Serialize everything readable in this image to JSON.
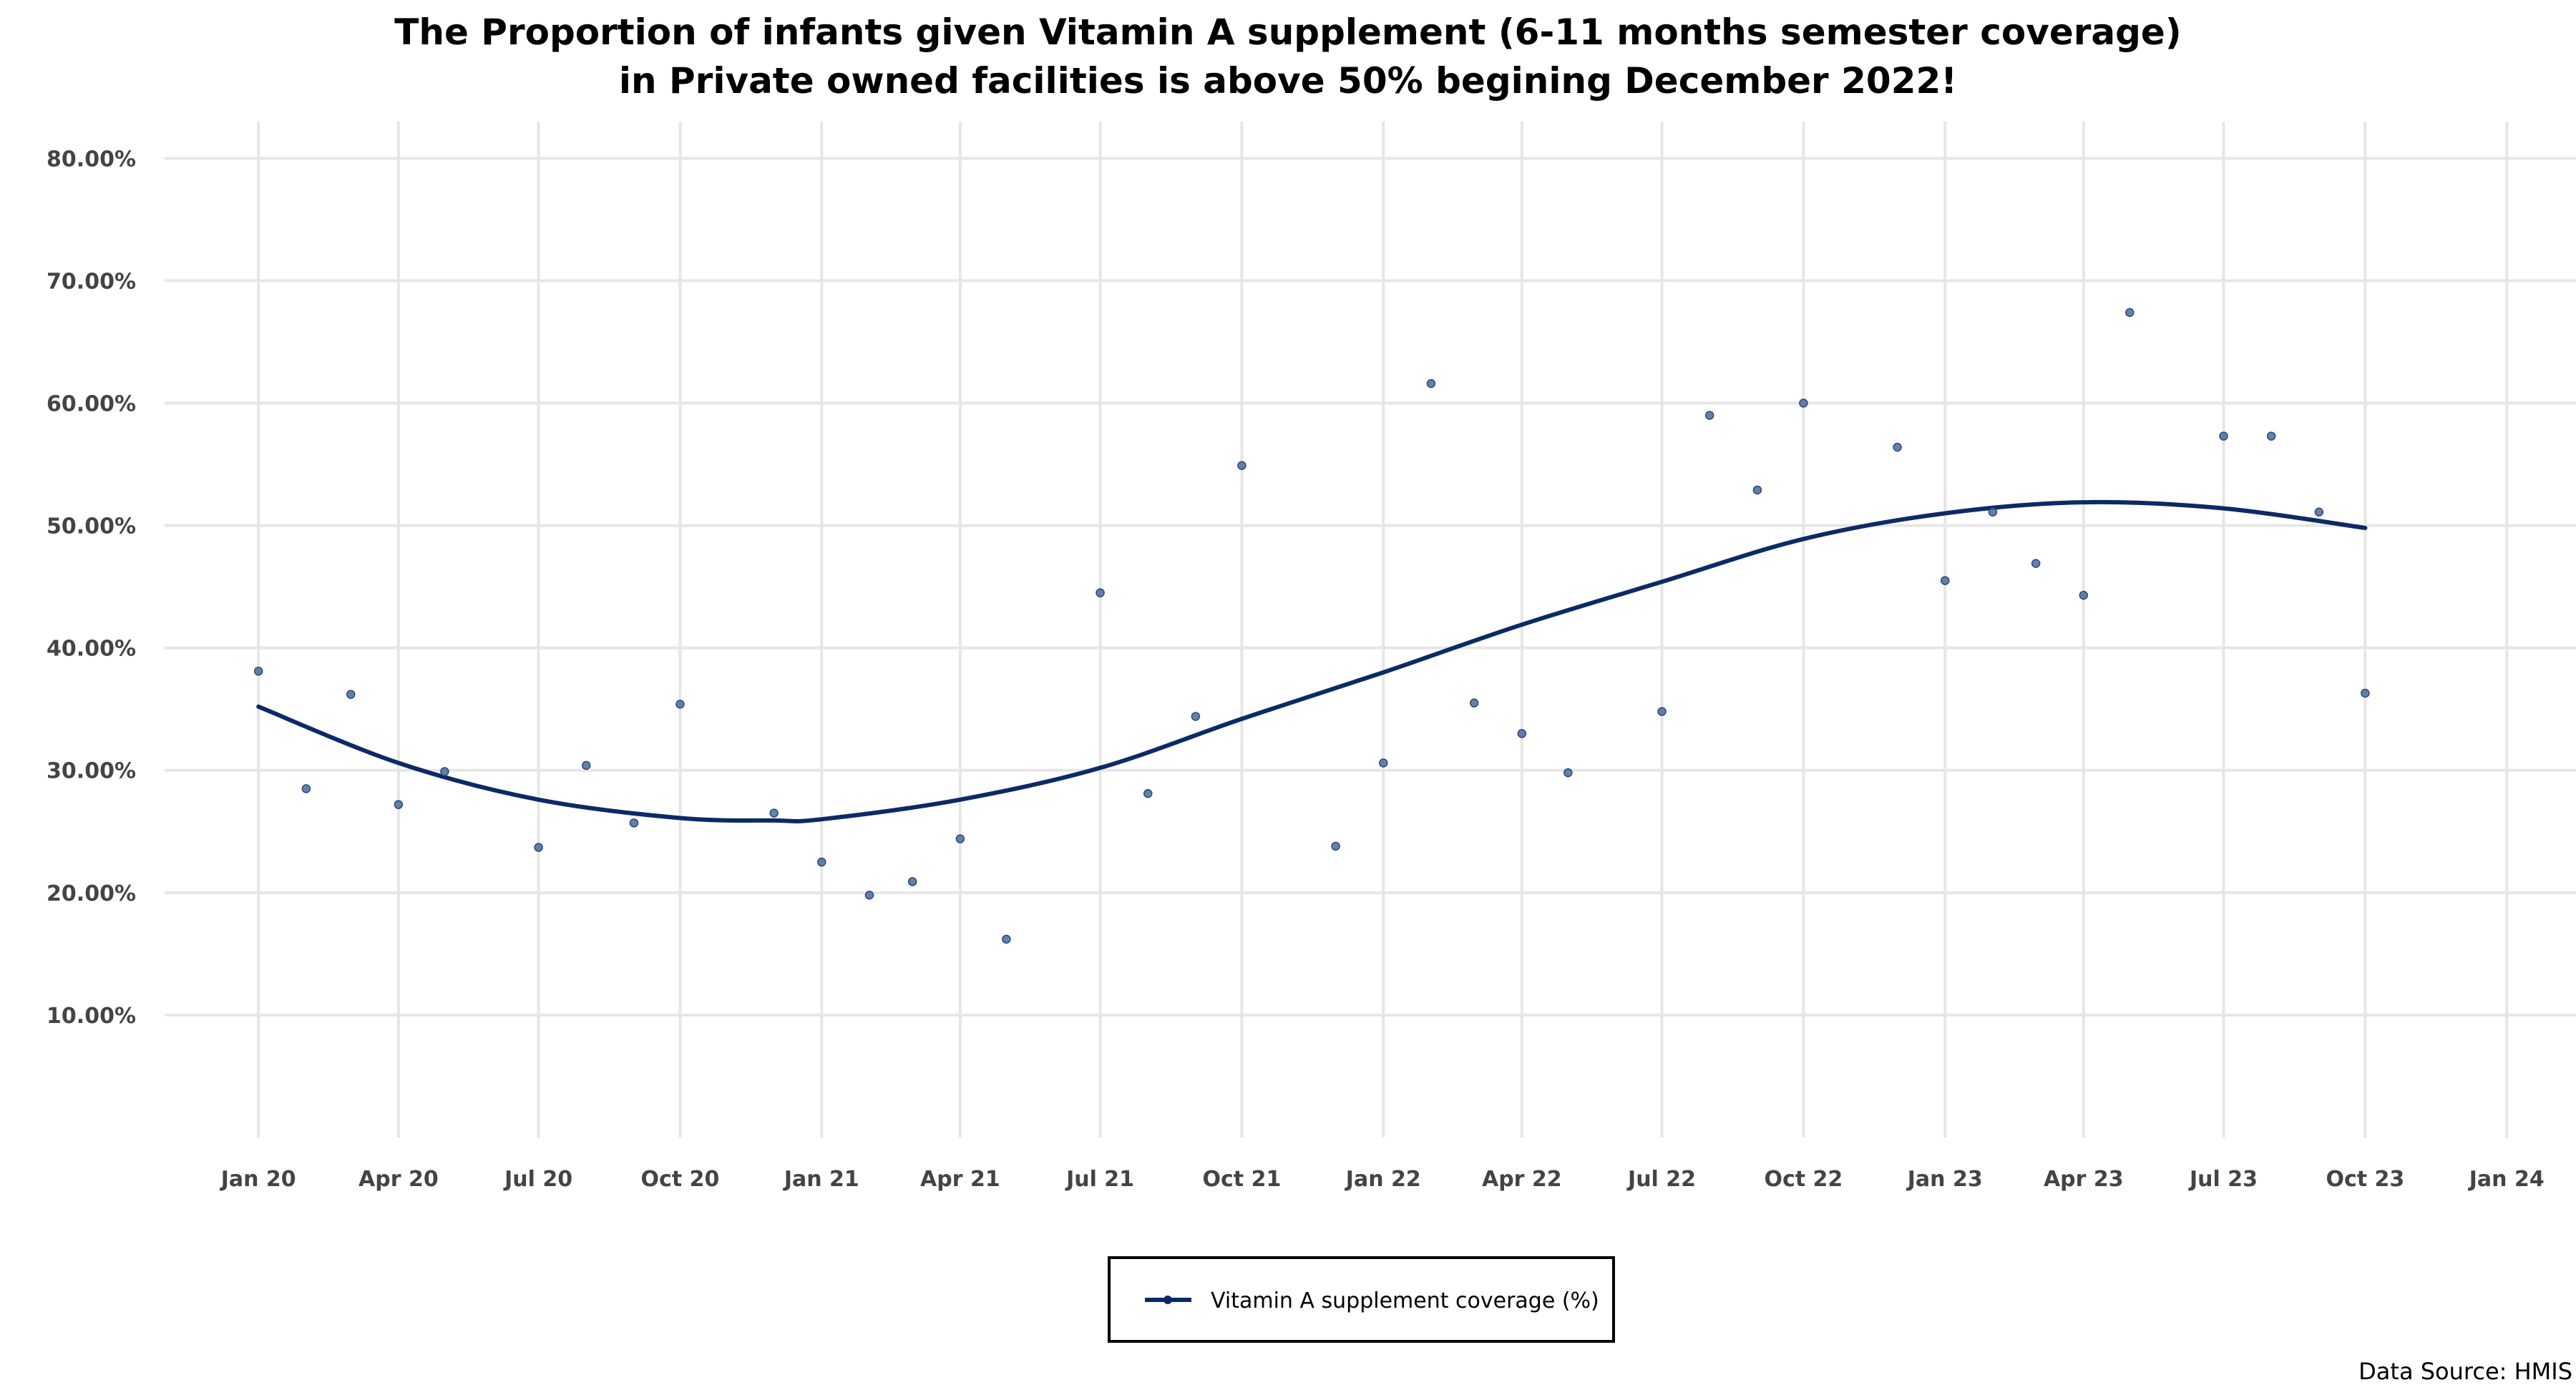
{
  "chart_data": {
    "type": "scatter",
    "title": "The Proportion of infants given Vitamin A supplement (6-11 months semester coverage)",
    "subtitle": "in Private owned facilities is above 50% begining December 2022!",
    "xlabel": "",
    "ylabel": "",
    "x_range": [
      "2019-11-01",
      "2024-02-15"
    ],
    "y_range": [
      0,
      83
    ],
    "grid": true,
    "legend_position": "bottom",
    "source": "Data Source: HMIS",
    "colors": {
      "line": "#0b2a66",
      "points": "#4a6a9a",
      "grid": "#e6e6e6"
    },
    "x_ticks": [
      {
        "date": "2020-01-01",
        "label": "Jan 20"
      },
      {
        "date": "2020-04-01",
        "label": "Apr 20"
      },
      {
        "date": "2020-07-01",
        "label": "Jul 20"
      },
      {
        "date": "2020-10-01",
        "label": "Oct 20"
      },
      {
        "date": "2021-01-01",
        "label": "Jan 21"
      },
      {
        "date": "2021-04-01",
        "label": "Apr 21"
      },
      {
        "date": "2021-07-01",
        "label": "Jul 21"
      },
      {
        "date": "2021-10-01",
        "label": "Oct 21"
      },
      {
        "date": "2022-01-01",
        "label": "Jan 22"
      },
      {
        "date": "2022-04-01",
        "label": "Apr 22"
      },
      {
        "date": "2022-07-01",
        "label": "Jul 22"
      },
      {
        "date": "2022-10-01",
        "label": "Oct 22"
      },
      {
        "date": "2023-01-01",
        "label": "Jan 23"
      },
      {
        "date": "2023-04-01",
        "label": "Apr 23"
      },
      {
        "date": "2023-07-01",
        "label": "Jul 23"
      },
      {
        "date": "2023-10-01",
        "label": "Oct 23"
      },
      {
        "date": "2024-01-01",
        "label": "Jan 24"
      }
    ],
    "y_ticks": [
      {
        "value": 10,
        "label": "10.00%"
      },
      {
        "value": 20,
        "label": "20.00%"
      },
      {
        "value": 30,
        "label": "30.00%"
      },
      {
        "value": 40,
        "label": "40.00%"
      },
      {
        "value": 50,
        "label": "50.00%"
      },
      {
        "value": 60,
        "label": "60.00%"
      },
      {
        "value": 70,
        "label": "70.00%"
      },
      {
        "value": 80,
        "label": "80.00%"
      }
    ],
    "series": [
      {
        "name": "Vitamin A supplement coverage (%)",
        "points": [
          {
            "x": "2020-01-01",
            "y": 38.1
          },
          {
            "x": "2020-02-01",
            "y": 28.5
          },
          {
            "x": "2020-03-01",
            "y": 36.2
          },
          {
            "x": "2020-04-01",
            "y": 27.2
          },
          {
            "x": "2020-05-01",
            "y": 29.9
          },
          {
            "x": "2020-07-01",
            "y": 23.7
          },
          {
            "x": "2020-08-01",
            "y": 30.4
          },
          {
            "x": "2020-09-01",
            "y": 25.7
          },
          {
            "x": "2020-10-01",
            "y": 35.4
          },
          {
            "x": "2020-12-01",
            "y": 26.5
          },
          {
            "x": "2021-01-01",
            "y": 22.5
          },
          {
            "x": "2021-02-01",
            "y": 19.8
          },
          {
            "x": "2021-03-01",
            "y": 20.9
          },
          {
            "x": "2021-04-01",
            "y": 24.4
          },
          {
            "x": "2021-05-01",
            "y": 16.2
          },
          {
            "x": "2021-07-01",
            "y": 44.5
          },
          {
            "x": "2021-08-01",
            "y": 28.1
          },
          {
            "x": "2021-09-01",
            "y": 34.4
          },
          {
            "x": "2021-10-01",
            "y": 54.9
          },
          {
            "x": "2021-12-01",
            "y": 23.8
          },
          {
            "x": "2022-01-01",
            "y": 30.6
          },
          {
            "x": "2022-02-01",
            "y": 61.6
          },
          {
            "x": "2022-03-01",
            "y": 35.5
          },
          {
            "x": "2022-04-01",
            "y": 33.0
          },
          {
            "x": "2022-05-01",
            "y": 29.8
          },
          {
            "x": "2022-07-01",
            "y": 34.8
          },
          {
            "x": "2022-08-01",
            "y": 59.0
          },
          {
            "x": "2022-09-01",
            "y": 52.9
          },
          {
            "x": "2022-10-01",
            "y": 60.0
          },
          {
            "x": "2022-12-01",
            "y": 56.4
          },
          {
            "x": "2023-01-01",
            "y": 45.5
          },
          {
            "x": "2023-02-01",
            "y": 51.1
          },
          {
            "x": "2023-03-01",
            "y": 46.9
          },
          {
            "x": "2023-04-01",
            "y": 44.3
          },
          {
            "x": "2023-05-01",
            "y": 67.4
          },
          {
            "x": "2023-07-01",
            "y": 57.3
          },
          {
            "x": "2023-08-01",
            "y": 57.3
          },
          {
            "x": "2023-09-01",
            "y": 51.1
          },
          {
            "x": "2023-10-01",
            "y": 36.3
          }
        ],
        "trend": [
          {
            "x": "2020-01-01",
            "y": 35.2
          },
          {
            "x": "2020-04-01",
            "y": 30.6
          },
          {
            "x": "2020-07-01",
            "y": 27.6
          },
          {
            "x": "2020-10-01",
            "y": 26.1
          },
          {
            "x": "2020-12-01",
            "y": 25.9
          },
          {
            "x": "2021-01-01",
            "y": 26.0
          },
          {
            "x": "2021-04-01",
            "y": 27.6
          },
          {
            "x": "2021-07-01",
            "y": 30.2
          },
          {
            "x": "2021-10-01",
            "y": 34.2
          },
          {
            "x": "2022-01-01",
            "y": 38.0
          },
          {
            "x": "2022-04-01",
            "y": 41.9
          },
          {
            "x": "2022-07-01",
            "y": 45.4
          },
          {
            "x": "2022-10-01",
            "y": 48.9
          },
          {
            "x": "2023-01-01",
            "y": 51.0
          },
          {
            "x": "2023-04-01",
            "y": 51.9
          },
          {
            "x": "2023-07-01",
            "y": 51.4
          },
          {
            "x": "2023-10-01",
            "y": 49.8
          }
        ]
      }
    ]
  }
}
